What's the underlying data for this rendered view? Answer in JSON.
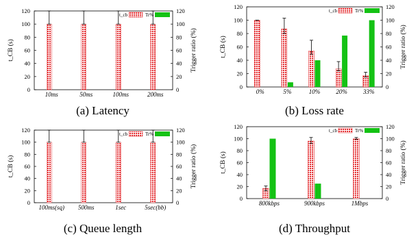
{
  "figure": {
    "captions": [
      "(a) Latency",
      "(b) Loss rate",
      "(c) Queue length",
      "(d) Throughput"
    ]
  },
  "colors": {
    "tcb_bar": "#e3282c",
    "tr_bar": "#14c214",
    "axis": "#000000",
    "whisker": "#000000"
  },
  "chart_data": [
    {
      "type": "bar",
      "title": "(a) Latency",
      "categories": [
        "10ms",
        "50ms",
        "100ms",
        "200ms"
      ],
      "series": [
        {
          "name": "t_cb",
          "values": [
            100,
            100,
            100,
            100
          ],
          "error_upper": [
            120,
            120,
            120,
            120
          ],
          "error_lower": [
            100,
            100,
            100,
            100
          ],
          "axis": "left"
        },
        {
          "name": "Tr%",
          "values": [
            0,
            0,
            0,
            0
          ],
          "axis": "right"
        }
      ],
      "ylabel": "t_CB (s)",
      "ylabel_right": "Trigger ratio (%)",
      "ylim": [
        0,
        120
      ],
      "ylim_right": [
        0,
        120
      ],
      "yticks": [
        0,
        20,
        40,
        60,
        80,
        100,
        120
      ],
      "legend": "top-right",
      "legend_labels": [
        "t_cb",
        "Tr%"
      ],
      "grid": false
    },
    {
      "type": "bar",
      "title": "(b) Loss rate",
      "categories": [
        "0%",
        "5%",
        "10%",
        "20%",
        "33%"
      ],
      "series": [
        {
          "name": "t_cb",
          "values": [
            100,
            87,
            54,
            27,
            17
          ],
          "error_upper": [
            100,
            103,
            70,
            38,
            22
          ],
          "error_lower": [
            100,
            80,
            49,
            24,
            15
          ],
          "axis": "left"
        },
        {
          "name": "Tr%",
          "values": [
            0,
            7,
            40,
            77,
            100
          ],
          "axis": "right"
        }
      ],
      "ylabel": "t_CB (s)",
      "ylabel_right": "Trigger ratio (%)",
      "ylim": [
        0,
        120
      ],
      "ylim_right": [
        0,
        120
      ],
      "yticks": [
        0,
        20,
        40,
        60,
        80,
        100,
        120
      ],
      "legend": "top-right",
      "legend_labels": [
        "t_cb",
        "Tr%"
      ],
      "grid": false
    },
    {
      "type": "bar",
      "title": "(c) Queue length",
      "categories": [
        "100ms(sq)",
        "500ms",
        "1sec",
        "5sec(bb)"
      ],
      "series": [
        {
          "name": "t_cb",
          "values": [
            100,
            100,
            100,
            100
          ],
          "error_upper": [
            120,
            120,
            120,
            120
          ],
          "error_lower": [
            100,
            100,
            100,
            100
          ],
          "axis": "left"
        },
        {
          "name": "Tr%",
          "values": [
            0,
            0,
            0,
            0
          ],
          "axis": "right"
        }
      ],
      "ylabel": "t_CB (s)",
      "ylabel_right": "Trigger ratio (%)",
      "ylim": [
        0,
        120
      ],
      "ylim_right": [
        0,
        120
      ],
      "yticks": [
        0,
        20,
        40,
        60,
        80,
        100,
        120
      ],
      "legend": "top-right",
      "legend_labels": [
        "t_cb",
        "Tr%"
      ],
      "grid": false
    },
    {
      "type": "bar",
      "title": "(d) Throughput",
      "categories": [
        "800kbps",
        "900kbps",
        "1Mbps"
      ],
      "series": [
        {
          "name": "t_cb",
          "values": [
            17,
            96,
            100
          ],
          "error_upper": [
            21,
            102,
            102
          ],
          "error_lower": [
            13,
            92,
            99
          ],
          "axis": "left"
        },
        {
          "name": "Tr%",
          "values": [
            100,
            25,
            0
          ],
          "axis": "right"
        }
      ],
      "ylabel": "t_CB (s)",
      "ylabel_right": "Trigger ratio (%)",
      "ylim": [
        0,
        120
      ],
      "ylim_right": [
        0,
        120
      ],
      "yticks": [
        0,
        20,
        40,
        60,
        80,
        100,
        120
      ],
      "legend": "top-right",
      "legend_labels": [
        "t_cb",
        "Tr%"
      ],
      "grid": false
    }
  ]
}
